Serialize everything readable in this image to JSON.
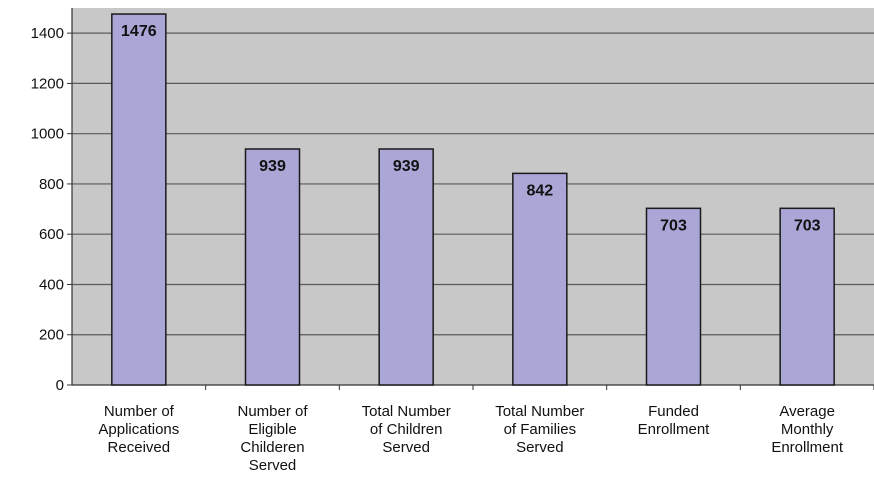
{
  "chart_data": {
    "type": "bar",
    "categories": [
      [
        "Number of",
        "Applications",
        "Received"
      ],
      [
        "Number of",
        "Eligible",
        "Childeren",
        "Served"
      ],
      [
        "Total Number",
        "of Children",
        "Served"
      ],
      [
        "Total Number",
        "of Families",
        "Served"
      ],
      [
        "Funded",
        "Enrollment"
      ],
      [
        "Average",
        "Monthly",
        "Enrollment"
      ]
    ],
    "values": [
      1476,
      939,
      939,
      842,
      703,
      703
    ],
    "data_labels": [
      "1476",
      "939",
      "939",
      "842",
      "703",
      "703"
    ],
    "yticks": [
      0,
      200,
      400,
      600,
      800,
      1000,
      1200,
      1400
    ],
    "ylim": [
      0,
      1500
    ],
    "grid": true,
    "legend": "none",
    "colors": {
      "plot_background": "#c8c8c8",
      "bar_fill": "#aaa6d6",
      "bar_stroke": "#1a1a1a",
      "gridline": "#5a5a5a"
    }
  }
}
